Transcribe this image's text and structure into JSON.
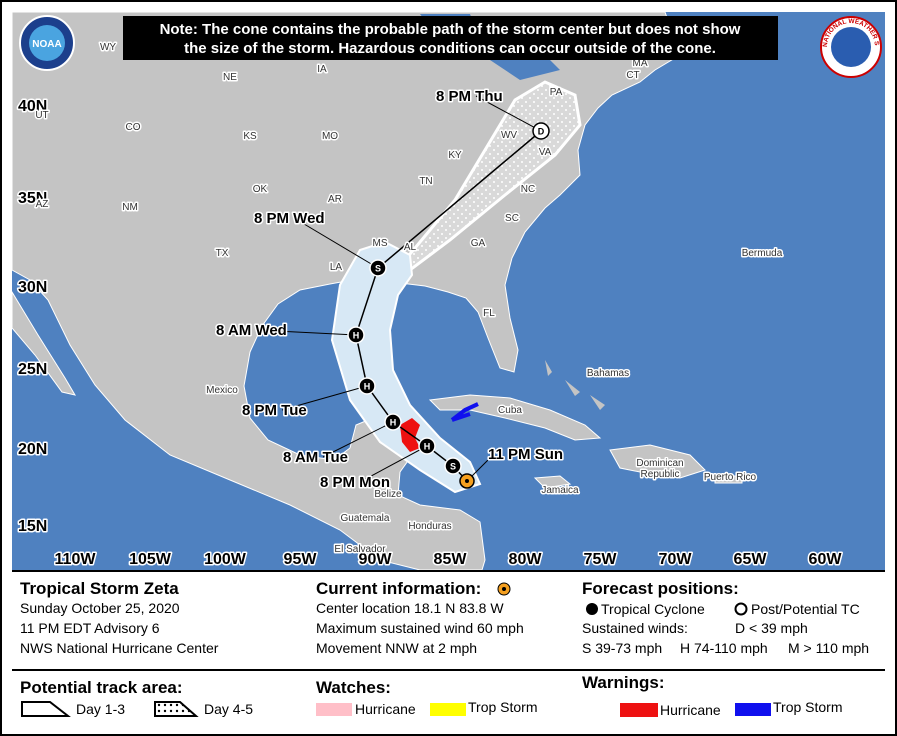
{
  "note": [
    "Note: The cone contains the probable path of the storm center but does not show",
    "the size of the storm. Hazardous conditions can occur outside of the cone."
  ],
  "logos": {
    "noaa": "NOAA",
    "nws": "NATIONAL WEATHER SERVICE"
  },
  "map": {
    "lat_labels": [
      "40N",
      "35N",
      "30N",
      "25N",
      "20N",
      "15N"
    ],
    "lon_labels": [
      "110W",
      "105W",
      "100W",
      "95W",
      "90W",
      "85W",
      "80W",
      "75W",
      "70W",
      "65W",
      "60W"
    ],
    "places": [
      "WY",
      "NE",
      "IA",
      "UT",
      "CO",
      "KS",
      "MO",
      "KY",
      "OK",
      "AZ",
      "NM",
      "AR",
      "TN",
      "TX",
      "MS",
      "AL",
      "GA",
      "LA",
      "FL",
      "SC",
      "NC",
      "VA",
      "WV",
      "PA",
      "CT",
      "MA",
      "Bermuda",
      "Mexico",
      "Bahamas",
      "Cuba",
      "Jamaica",
      "Belize",
      "Guatemala",
      "Honduras",
      "El Salvador",
      "Dominican",
      "Republic",
      "Puerto Rico"
    ],
    "current_time": "11 PM Sun",
    "forecast_points": [
      {
        "time": null,
        "symbol": "S"
      },
      {
        "time": "8 PM Mon",
        "symbol": "H"
      },
      {
        "time": "8 AM Tue",
        "symbol": "H"
      },
      {
        "time": "8 PM Tue",
        "symbol": "H"
      },
      {
        "time": "8 AM Wed",
        "symbol": "H"
      },
      {
        "time": "8 PM Wed",
        "symbol": "S"
      },
      {
        "time": "8 PM Thu",
        "symbol": "D"
      }
    ]
  },
  "storm": {
    "name": "Tropical Storm Zeta",
    "date": "Sunday October 25, 2020",
    "advisory": "11 PM EDT Advisory 6",
    "source": "NWS National Hurricane Center"
  },
  "current": {
    "heading": "Current information:",
    "lines": [
      "Center location 18.1 N 83.8 W",
      "Maximum sustained wind 60 mph",
      "Movement NNW at 2 mph"
    ]
  },
  "forecast": {
    "heading": "Forecast positions:",
    "tropical_cyclone": "Tropical Cyclone",
    "post_tc": "Post/Potential TC",
    "sustained_winds": "Sustained winds:",
    "d": "D < 39 mph",
    "s": "S 39-73 mph",
    "h": "H 74-110 mph",
    "m": "M > 110 mph"
  },
  "track_area": {
    "heading": "Potential track area:",
    "day13": "Day 1-3",
    "day45": "Day 4-5"
  },
  "watches": {
    "heading": "Watches:",
    "hurricane": "Hurricane",
    "trop_storm": "Trop Storm"
  },
  "warnings": {
    "heading": "Warnings:",
    "hurricane": "Hurricane",
    "trop_storm": "Trop Storm"
  }
}
